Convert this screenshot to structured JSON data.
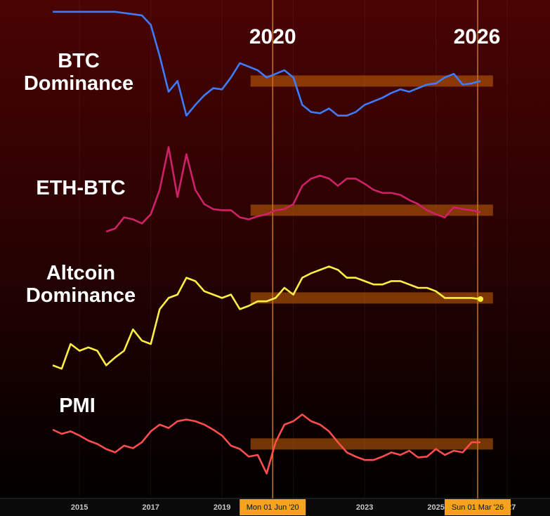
{
  "chart_data": {
    "type": "line",
    "x": [
      2014.25,
      2014.5,
      2014.75,
      2015,
      2015.25,
      2015.5,
      2015.75,
      2016,
      2016.25,
      2016.5,
      2016.75,
      2017,
      2017.25,
      2017.5,
      2017.75,
      2018,
      2018.25,
      2018.5,
      2018.75,
      2019,
      2019.25,
      2019.5,
      2019.75,
      2020,
      2020.25,
      2020.5,
      2020.75,
      2021,
      2021.25,
      2021.5,
      2021.75,
      2022,
      2022.25,
      2022.5,
      2022.75,
      2023,
      2023.25,
      2023.5,
      2023.75,
      2024,
      2024.25,
      2024.5,
      2024.75,
      2025,
      2025.25,
      2025.5,
      2025.75,
      2026,
      2026.25
    ],
    "xlim": [
      2012.77,
      2028.2
    ],
    "xticks": [
      2015,
      2017,
      2019,
      2021,
      2023,
      2025,
      2027
    ],
    "ylim": [
      0,
      100
    ],
    "band_x": [
      2019.8,
      2026.6
    ],
    "series": [
      {
        "name": "BTC Dominance",
        "color": "#3d7bff",
        "band": 38,
        "values": [
          96,
          96,
          96,
          96,
          96,
          96,
          96,
          96,
          95,
          94,
          93,
          85,
          59,
          29,
          38,
          9,
          18,
          26,
          32,
          31,
          41,
          53,
          50,
          47,
          41,
          44,
          47,
          41,
          18,
          12,
          11,
          15,
          9,
          9,
          12,
          18,
          21,
          24,
          28,
          31,
          29,
          32,
          35,
          36,
          41,
          44,
          35,
          36,
          38
        ]
      },
      {
        "name": "ETH-BTC",
        "color": "#d0206a",
        "band": 28,
        "values": [
          null,
          null,
          null,
          null,
          null,
          null,
          7,
          10,
          21,
          19,
          15,
          24,
          48,
          90,
          41,
          83,
          48,
          34,
          29,
          28,
          28,
          21,
          19,
          22,
          24,
          28,
          29,
          34,
          52,
          59,
          62,
          59,
          52,
          59,
          59,
          54,
          48,
          45,
          45,
          43,
          38,
          34,
          28,
          24,
          21,
          31,
          29,
          28,
          26
        ]
      },
      {
        "name": "Altcoin Dominance",
        "color": "#ffee44",
        "band": 66,
        "values": [
          6,
          3,
          25,
          19,
          22,
          19,
          6,
          13,
          19,
          38,
          28,
          25,
          56,
          66,
          69,
          84,
          81,
          72,
          69,
          66,
          69,
          56,
          59,
          63,
          63,
          66,
          75,
          69,
          84,
          88,
          91,
          94,
          91,
          84,
          84,
          81,
          78,
          78,
          81,
          81,
          78,
          75,
          75,
          72,
          66,
          66,
          66,
          66,
          65
        ]
      },
      {
        "name": "PMI",
        "color": "#ff4d4d",
        "band": 48,
        "values": [
          65,
          60,
          63,
          58,
          52,
          48,
          42,
          38,
          46,
          43,
          50,
          63,
          71,
          67,
          75,
          77,
          75,
          71,
          65,
          58,
          46,
          42,
          33,
          35,
          13,
          50,
          71,
          75,
          83,
          75,
          71,
          63,
          50,
          38,
          33,
          29,
          29,
          33,
          38,
          35,
          40,
          32,
          33,
          42,
          35,
          40,
          38,
          50,
          50
        ]
      }
    ],
    "markers": [
      {
        "x": 2020.42,
        "label": "Mon 01 Jun '20",
        "annotation": "2020"
      },
      {
        "x": 2026.17,
        "label": "Sun 01 Mar '26",
        "annotation": "2026"
      }
    ]
  }
}
